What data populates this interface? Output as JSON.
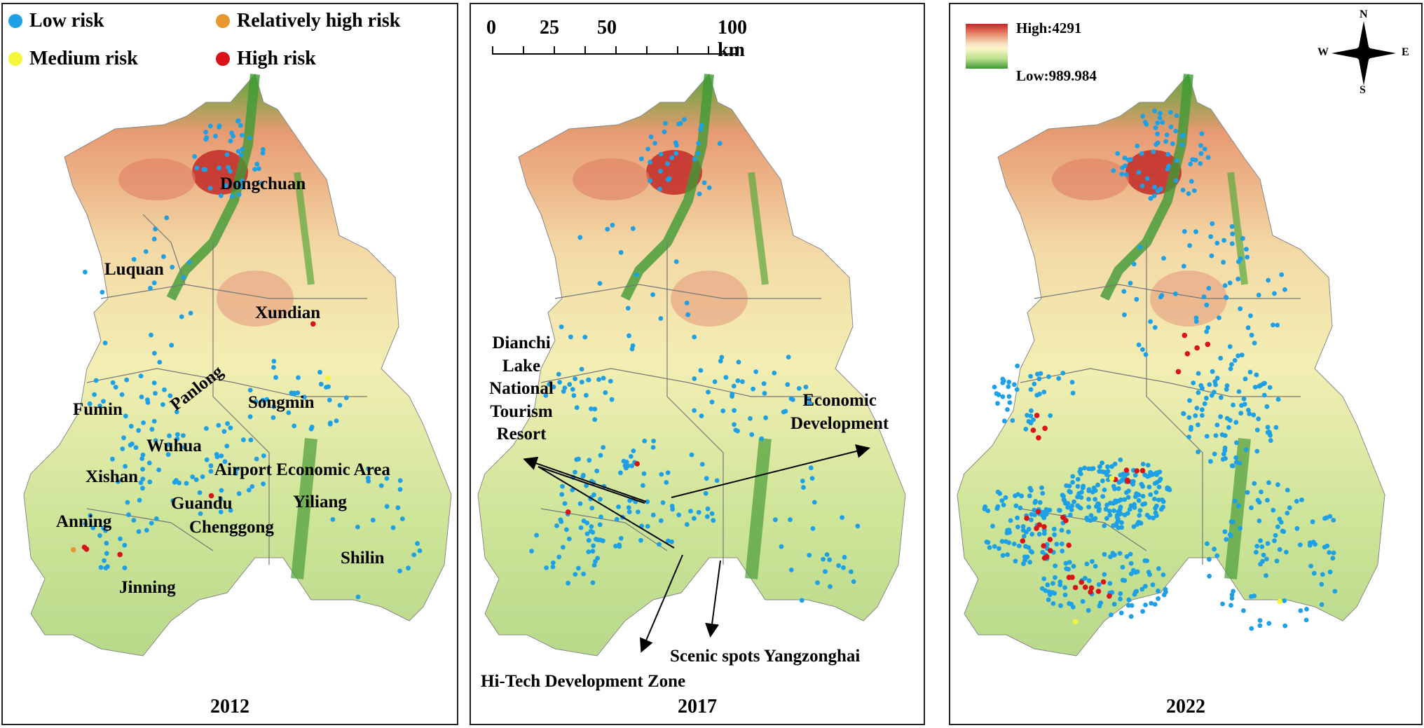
{
  "legend": {
    "low_risk": "Low risk",
    "medium_risk": "Medium risk",
    "relatively_high_risk": "Relatively high risk",
    "high_risk": "High risk",
    "colors": {
      "low": "#1ea0e6",
      "medium": "#f5f53c",
      "relatively_high": "#e8962e",
      "high": "#d8141a"
    }
  },
  "panels": [
    {
      "year": "2012"
    },
    {
      "year": "2017"
    },
    {
      "year": "2022"
    }
  ],
  "districts_2012": {
    "dongchuan": "Dongchuan",
    "luquan": "Luquan",
    "xundian": "Xundian",
    "fumin": "Fumin",
    "panlong": "Panlong",
    "songmin": "Songmin",
    "wuhua": "Wuhua",
    "xishan": "Xishan",
    "airport": "Airport Economic Area",
    "guandu": "Guandu",
    "yiliang": "Yiliang",
    "anning": "Anning",
    "chenggong": "Chenggong",
    "shilin": "Shilin",
    "jinning": "Jinning"
  },
  "annotations_2017": {
    "dianchi": [
      "Dianchi",
      "Lake",
      "National",
      "Tourism",
      "Resort"
    ],
    "economic": [
      "Economic",
      "Development"
    ],
    "yangzonghai": "Scenic spots Yangzonghai",
    "hitech": "Hi-Tech Development Zone"
  },
  "scale": {
    "labels": [
      "0",
      "25",
      "50",
      "100 km"
    ]
  },
  "elevation": {
    "high": "High:4291",
    "low": "Low:989.984"
  },
  "compass": {
    "n": "N",
    "s": "S",
    "e": "E",
    "w": "W"
  }
}
